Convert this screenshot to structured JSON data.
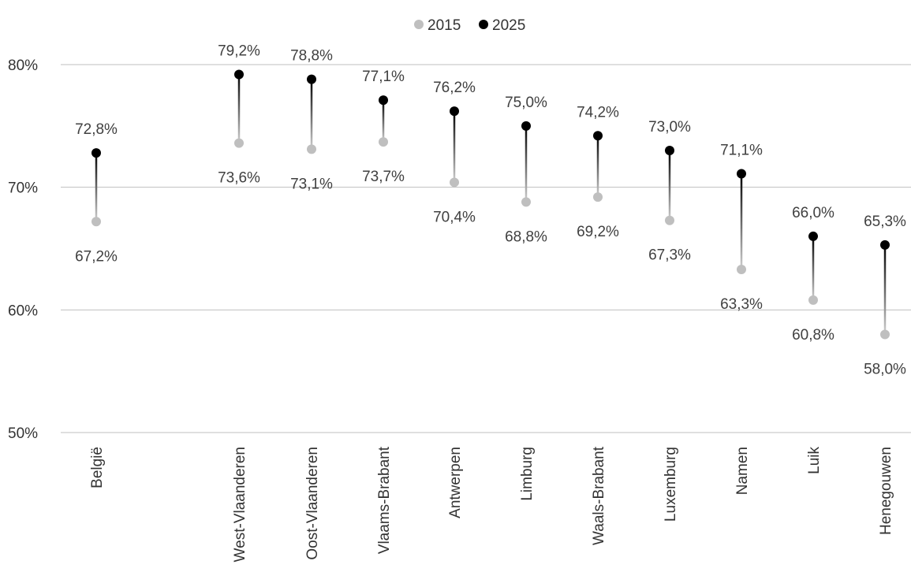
{
  "chart_data": {
    "type": "dumbbell",
    "categories": [
      "België",
      "West-Vlaanderen",
      "Oost-Vlaanderen",
      "Vlaams-Brabant",
      "Antwerpen",
      "Limburg",
      "Waals-Brabant",
      "Luxemburg",
      "Namen",
      "Luik",
      "Henegouwen"
    ],
    "series": [
      {
        "name": "2015",
        "color": "#bfbfbf",
        "values": [
          67.2,
          73.6,
          73.1,
          73.7,
          70.4,
          68.8,
          69.2,
          67.3,
          63.3,
          60.8,
          58.0
        ],
        "labels": [
          "67,2%",
          "73,6%",
          "73,1%",
          "73,7%",
          "70,4%",
          "68,8%",
          "69,2%",
          "67,3%",
          "63,3%",
          "60,8%",
          "58,0%"
        ]
      },
      {
        "name": "2025",
        "color": "#000000",
        "values": [
          72.8,
          79.2,
          78.8,
          77.1,
          76.2,
          75.0,
          74.2,
          73.0,
          71.1,
          66.0,
          65.3
        ],
        "labels": [
          "72,8%",
          "79,2%",
          "78,8%",
          "77,1%",
          "76,2%",
          "75,0%",
          "74,2%",
          "73,0%",
          "71,1%",
          "66,0%",
          "65,3%"
        ]
      }
    ],
    "y_ticks": [
      50,
      60,
      70,
      80
    ],
    "y_tick_labels": [
      "50%",
      "60%",
      "70%",
      "80%"
    ],
    "ylim": [
      50,
      80
    ],
    "grid": true,
    "legend_position": "top-center"
  }
}
